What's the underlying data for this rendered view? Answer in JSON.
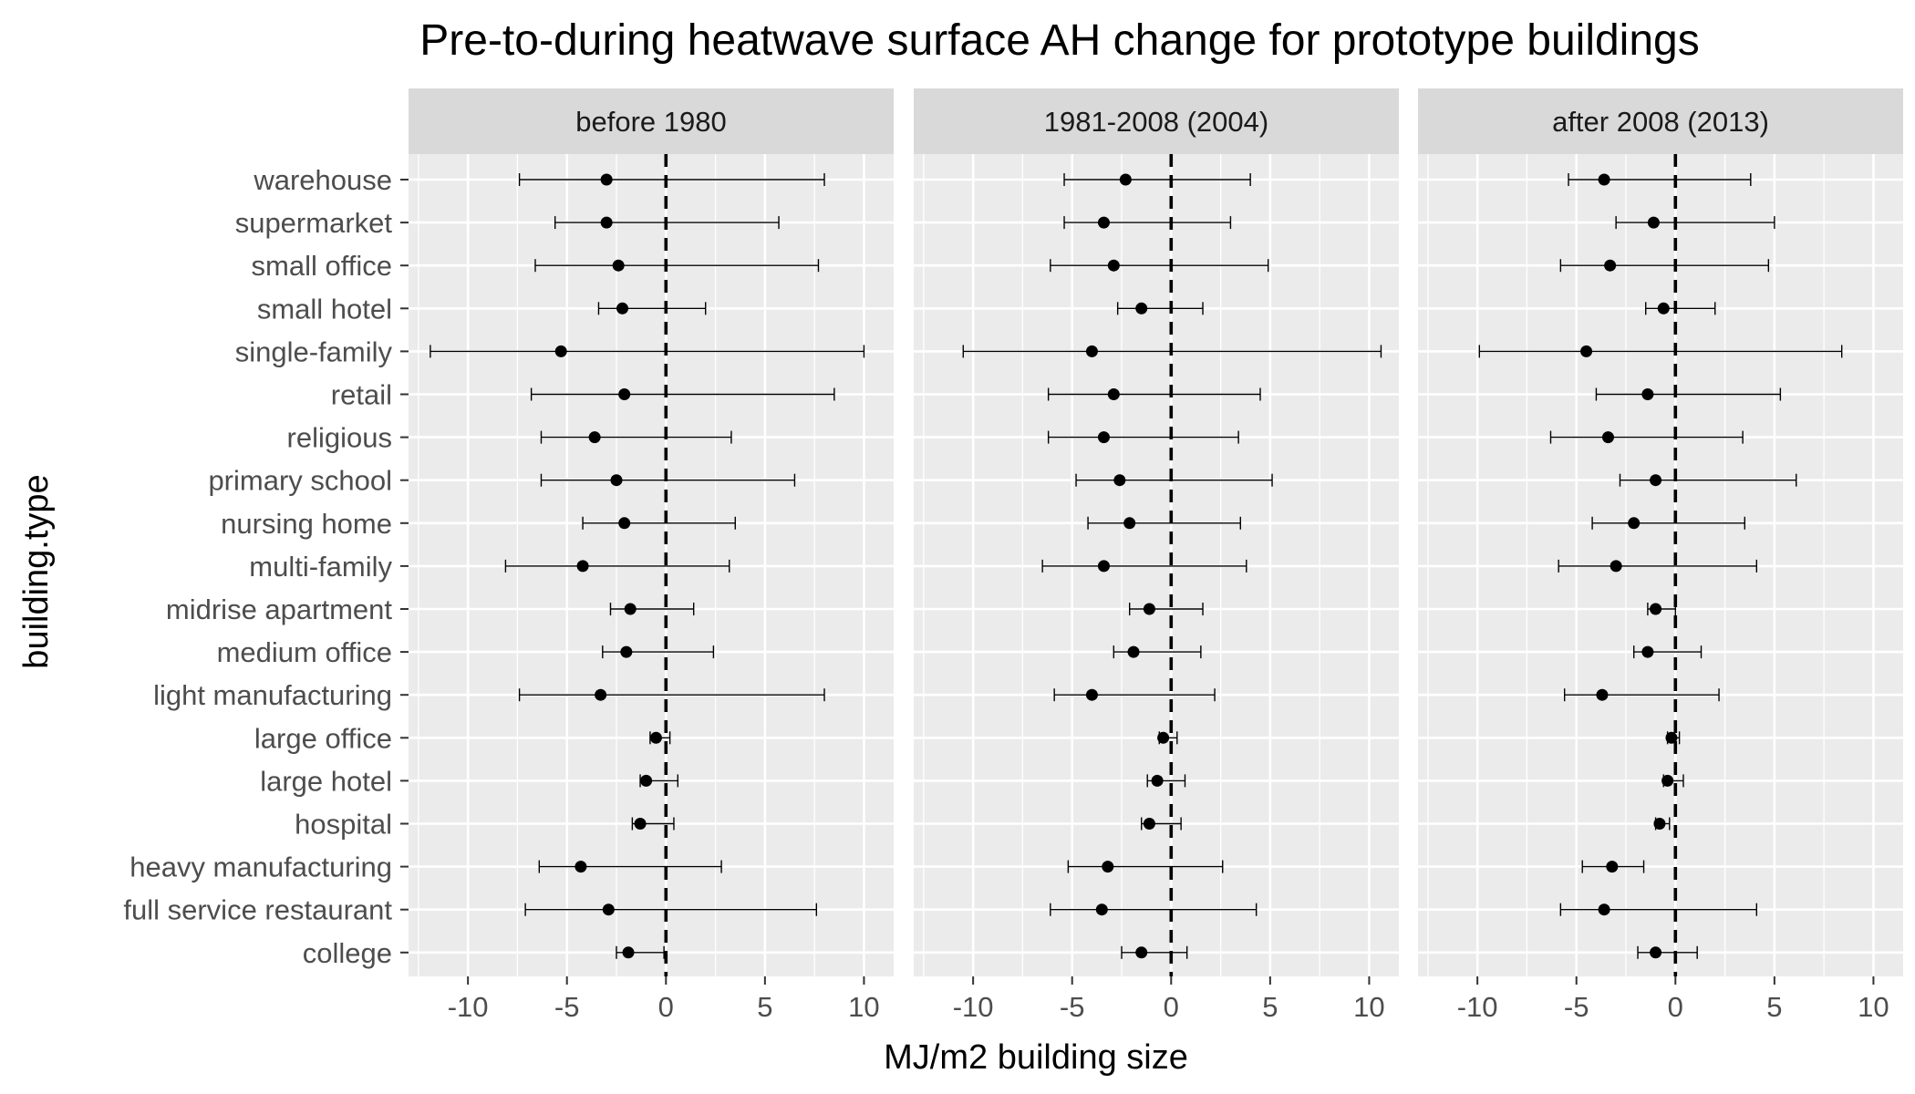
{
  "chart_data": {
    "type": "scatter",
    "subtype": "point-with-errorbars",
    "title": "Pre-to-during heatwave surface AH change for prototype buildings",
    "xlabel": "MJ/m2 building size",
    "ylabel": "building.type",
    "xlim": [
      -13,
      11.5
    ],
    "x_ticks": [
      -10,
      -5,
      0,
      5,
      10
    ],
    "x_tick_labels": [
      "-10",
      "-5",
      "0",
      "5",
      "10"
    ],
    "reference_line": {
      "x": 0,
      "style": "dashed"
    },
    "grid": true,
    "colors": {
      "panel_bg": "#ebebeb",
      "strip_bg": "#d9d9d9",
      "grid": "#ffffff",
      "marks": "#000000"
    },
    "categories": [
      "warehouse",
      "supermarket",
      "small office",
      "small hotel",
      "single-family",
      "retail",
      "religious",
      "primary school",
      "nursing home",
      "multi-family",
      "midrise apartment",
      "medium office",
      "light manufacturing",
      "large office",
      "large hotel",
      "hospital",
      "heavy manufacturing",
      "full service restaurant",
      "college"
    ],
    "panels": [
      {
        "name": "before 1980",
        "points": [
          {
            "mean": -3.0,
            "low": -7.4,
            "high": 8.0
          },
          {
            "mean": -3.0,
            "low": -5.6,
            "high": 5.7
          },
          {
            "mean": -2.4,
            "low": -6.6,
            "high": 7.7
          },
          {
            "mean": -2.2,
            "low": -3.4,
            "high": 2.0
          },
          {
            "mean": -5.3,
            "low": -11.9,
            "high": 10.0
          },
          {
            "mean": -2.1,
            "low": -6.8,
            "high": 8.5
          },
          {
            "mean": -3.6,
            "low": -6.3,
            "high": 3.3
          },
          {
            "mean": -2.5,
            "low": -6.3,
            "high": 6.5
          },
          {
            "mean": -2.1,
            "low": -4.2,
            "high": 3.5
          },
          {
            "mean": -4.2,
            "low": -8.1,
            "high": 3.2
          },
          {
            "mean": -1.8,
            "low": -2.8,
            "high": 1.4
          },
          {
            "mean": -2.0,
            "low": -3.2,
            "high": 2.4
          },
          {
            "mean": -3.3,
            "low": -7.4,
            "high": 8.0
          },
          {
            "mean": -0.5,
            "low": -0.8,
            "high": 0.2
          },
          {
            "mean": -1.0,
            "low": -1.3,
            "high": 0.6
          },
          {
            "mean": -1.3,
            "low": -1.7,
            "high": 0.4
          },
          {
            "mean": -4.3,
            "low": -6.4,
            "high": 2.8
          },
          {
            "mean": -2.9,
            "low": -7.1,
            "high": 7.6
          },
          {
            "mean": -1.9,
            "low": -2.5,
            "high": -0.1
          }
        ]
      },
      {
        "name": "1981-2008 (2004)",
        "points": [
          {
            "mean": -2.3,
            "low": -5.4,
            "high": 4.0
          },
          {
            "mean": -3.4,
            "low": -5.4,
            "high": 3.0
          },
          {
            "mean": -2.9,
            "low": -6.1,
            "high": 4.9
          },
          {
            "mean": -1.5,
            "low": -2.7,
            "high": 1.6
          },
          {
            "mean": -4.0,
            "low": -10.5,
            "high": 10.6
          },
          {
            "mean": -2.9,
            "low": -6.2,
            "high": 4.5
          },
          {
            "mean": -3.4,
            "low": -6.2,
            "high": 3.4
          },
          {
            "mean": -2.6,
            "low": -4.8,
            "high": 5.1
          },
          {
            "mean": -2.1,
            "low": -4.2,
            "high": 3.5
          },
          {
            "mean": -3.4,
            "low": -6.5,
            "high": 3.8
          },
          {
            "mean": -1.1,
            "low": -2.1,
            "high": 1.6
          },
          {
            "mean": -1.9,
            "low": -2.9,
            "high": 1.5
          },
          {
            "mean": -4.0,
            "low": -5.9,
            "high": 2.2
          },
          {
            "mean": -0.4,
            "low": -0.6,
            "high": 0.3
          },
          {
            "mean": -0.7,
            "low": -1.2,
            "high": 0.7
          },
          {
            "mean": -1.1,
            "low": -1.5,
            "high": 0.5
          },
          {
            "mean": -3.2,
            "low": -5.2,
            "high": 2.6
          },
          {
            "mean": -3.5,
            "low": -6.1,
            "high": 4.3
          },
          {
            "mean": -1.5,
            "low": -2.5,
            "high": 0.8
          }
        ]
      },
      {
        "name": "after 2008 (2013)",
        "points": [
          {
            "mean": -3.6,
            "low": -5.4,
            "high": 3.8
          },
          {
            "mean": -1.1,
            "low": -3.0,
            "high": 5.0
          },
          {
            "mean": -3.3,
            "low": -5.8,
            "high": 4.7
          },
          {
            "mean": -0.6,
            "low": -1.5,
            "high": 2.0
          },
          {
            "mean": -4.5,
            "low": -9.9,
            "high": 8.4
          },
          {
            "mean": -1.4,
            "low": -4.0,
            "high": 5.3
          },
          {
            "mean": -3.4,
            "low": -6.3,
            "high": 3.4
          },
          {
            "mean": -1.0,
            "low": -2.8,
            "high": 6.1
          },
          {
            "mean": -2.1,
            "low": -4.2,
            "high": 3.5
          },
          {
            "mean": -3.0,
            "low": -5.9,
            "high": 4.1
          },
          {
            "mean": -1.0,
            "low": -1.4,
            "high": 0.0
          },
          {
            "mean": -1.4,
            "low": -2.1,
            "high": 1.3
          },
          {
            "mean": -3.7,
            "low": -5.6,
            "high": 2.2
          },
          {
            "mean": -0.2,
            "low": -0.4,
            "high": 0.2
          },
          {
            "mean": -0.4,
            "low": -0.6,
            "high": 0.4
          },
          {
            "mean": -0.8,
            "low": -1.0,
            "high": -0.3
          },
          {
            "mean": -3.2,
            "low": -4.7,
            "high": -1.6
          },
          {
            "mean": -3.6,
            "low": -5.8,
            "high": 4.1
          },
          {
            "mean": -1.0,
            "low": -1.9,
            "high": 1.1
          }
        ]
      }
    ]
  }
}
